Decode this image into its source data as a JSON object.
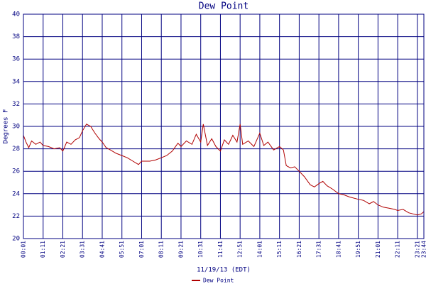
{
  "chart_data": {
    "type": "line",
    "title": "Dew Point",
    "xlabel": "11/19/13 (EDT)",
    "ylabel": "Degrees F",
    "x": [
      "00:01",
      "00:10",
      "00:20",
      "00:30",
      "00:45",
      "01:00",
      "01:11",
      "01:30",
      "01:50",
      "02:10",
      "02:21",
      "02:35",
      "02:50",
      "03:05",
      "03:20",
      "03:31",
      "03:45",
      "04:00",
      "04:15",
      "04:30",
      "04:41",
      "04:55",
      "05:10",
      "05:30",
      "05:51",
      "06:10",
      "06:30",
      "06:50",
      "07:01",
      "07:30",
      "07:50",
      "08:11",
      "08:30",
      "08:50",
      "09:10",
      "09:21",
      "09:40",
      "10:00",
      "10:15",
      "10:31",
      "10:40",
      "10:55",
      "11:10",
      "11:25",
      "11:41",
      "11:55",
      "12:10",
      "12:25",
      "12:40",
      "12:51",
      "13:00",
      "13:20",
      "13:40",
      "14:01",
      "14:15",
      "14:30",
      "14:50",
      "15:11",
      "15:25",
      "15:35",
      "15:50",
      "16:05",
      "16:21",
      "16:40",
      "17:00",
      "17:15",
      "17:31",
      "17:45",
      "18:00",
      "18:20",
      "18:41",
      "19:00",
      "19:20",
      "19:51",
      "20:10",
      "20:30",
      "20:45",
      "21:01",
      "21:20",
      "21:40",
      "22:00",
      "22:11",
      "22:30",
      "22:50",
      "23:05",
      "23:21",
      "23:35",
      "23:44"
    ],
    "series": [
      {
        "name": "Dew Point",
        "color": "#b00000",
        "values": [
          29.2,
          28.6,
          28.1,
          28.7,
          28.4,
          28.6,
          28.3,
          28.2,
          28.0,
          28.1,
          27.8,
          28.6,
          28.4,
          28.8,
          29.0,
          29.6,
          30.2,
          30.0,
          29.4,
          28.9,
          28.6,
          28.1,
          27.9,
          27.6,
          27.4,
          27.2,
          26.9,
          26.6,
          26.9,
          26.9,
          27.0,
          27.2,
          27.4,
          27.8,
          28.5,
          28.2,
          28.7,
          28.4,
          29.3,
          28.6,
          30.2,
          28.3,
          28.9,
          28.2,
          27.8,
          28.8,
          28.4,
          29.2,
          28.6,
          30.2,
          28.4,
          28.7,
          28.2,
          29.4,
          28.3,
          28.6,
          27.9,
          28.2,
          27.9,
          26.5,
          26.3,
          26.4,
          26.0,
          25.5,
          24.8,
          24.6,
          24.9,
          25.1,
          24.7,
          24.4,
          24.0,
          23.9,
          23.7,
          23.5,
          23.4,
          23.1,
          23.3,
          23.0,
          22.8,
          22.7,
          22.6,
          22.5,
          22.6,
          22.3,
          22.2,
          22.1,
          22.2,
          22.4
        ]
      }
    ],
    "xlim": [
      "00:01",
      "23:44"
    ],
    "xticks": [
      "00:01",
      "01:11",
      "02:21",
      "03:31",
      "04:41",
      "05:51",
      "07:01",
      "08:11",
      "09:21",
      "10:31",
      "11:41",
      "12:51",
      "14:01",
      "15:11",
      "16:21",
      "17:31",
      "18:41",
      "19:51",
      "21:01",
      "22:11",
      "23:21",
      "23:44"
    ],
    "ylim": [
      20,
      40
    ],
    "yticks": [
      20,
      22,
      24,
      26,
      28,
      30,
      32,
      34,
      36,
      38,
      40
    ],
    "grid": true
  }
}
